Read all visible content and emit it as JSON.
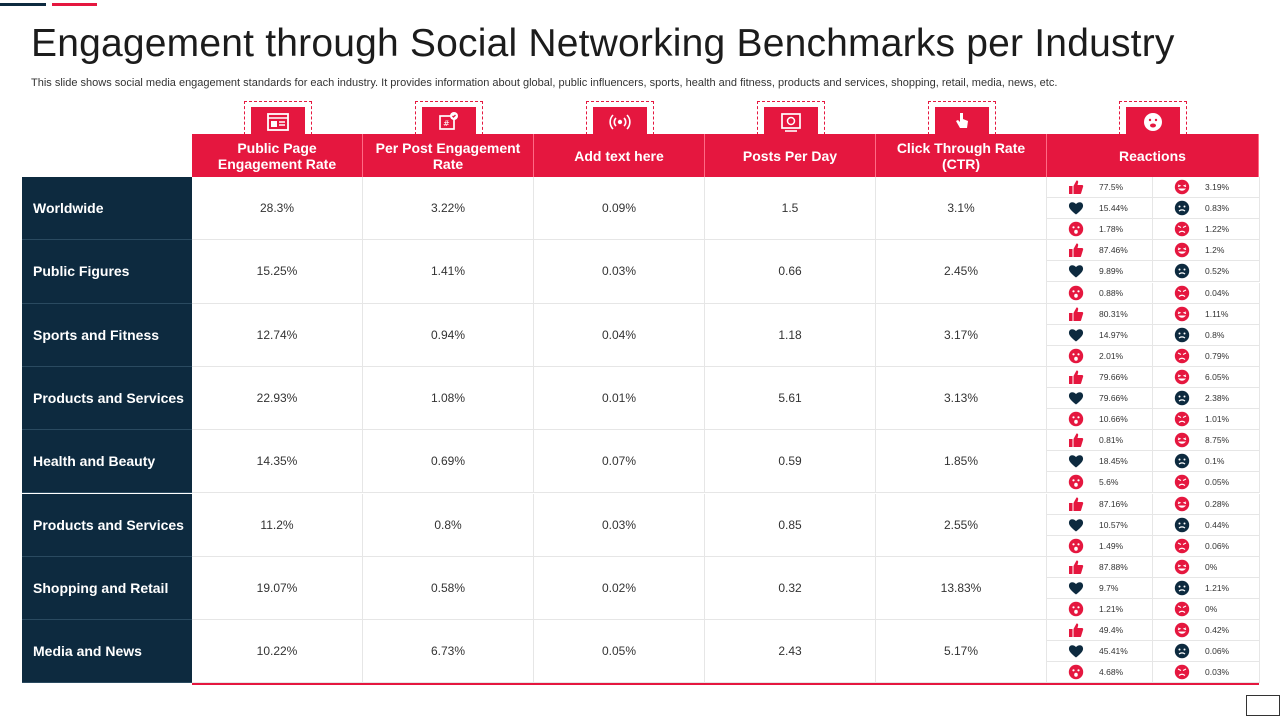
{
  "title": "Engagement through Social Networking Benchmarks per Industry",
  "subtitle": "This slide shows social media engagement standards for each industry. It provides information about global, public influencers, sports, health and fitness, products and services, shopping, retail, media, news, etc.",
  "colors": {
    "accent": "#e5173f",
    "dark": "#0d2a3f"
  },
  "columns": [
    {
      "label": "Public Page Engagement Rate",
      "icon": "webpage-icon"
    },
    {
      "label": "Per Post Engagement Rate",
      "icon": "hashtag-post-icon"
    },
    {
      "label": "Add text here",
      "icon": "broadcast-icon"
    },
    {
      "label": "Posts Per Day",
      "icon": "image-post-icon"
    },
    {
      "label": "Click Through Rate (CTR)",
      "icon": "click-icon"
    },
    {
      "label": "Reactions",
      "icon": "surprised-face-icon"
    }
  ],
  "rows": [
    {
      "label": "Worldwide",
      "values": [
        "28.3%",
        "3.22%",
        "0.09%",
        "1.5",
        "3.1%"
      ],
      "reactions": {
        "like": "77.5%",
        "love": "15.44%",
        "wow": "1.78%",
        "haha": "3.19%",
        "sad": "0.83%",
        "angry": "1.22%"
      }
    },
    {
      "label": "Public Figures",
      "values": [
        "15.25%",
        "1.41%",
        "0.03%",
        "0.66",
        "2.45%"
      ],
      "reactions": {
        "like": "87.46%",
        "love": "9.89%",
        "wow": "0.88%",
        "haha": "1.2%",
        "sad": "0.52%",
        "angry": "0.04%"
      }
    },
    {
      "label": "Sports and Fitness",
      "values": [
        "12.74%",
        "0.94%",
        "0.04%",
        "1.18",
        "3.17%"
      ],
      "reactions": {
        "like": "80.31%",
        "love": "14.97%",
        "wow": "2.01%",
        "haha": "1.11%",
        "sad": "0.8%",
        "angry": "0.79%"
      }
    },
    {
      "label": "Products and Services",
      "values": [
        "22.93%",
        "1.08%",
        "0.01%",
        "5.61",
        "3.13%"
      ],
      "reactions": {
        "like": "79.66%",
        "love": "79.66%",
        "wow": "10.66%",
        "haha": "6.05%",
        "sad": "2.38%",
        "angry": "1.01%"
      }
    },
    {
      "label": "Health and Beauty",
      "values": [
        "14.35%",
        "0.69%",
        "0.07%",
        "0.59",
        "1.85%"
      ],
      "reactions": {
        "like": "0.81%",
        "love": "18.45%",
        "wow": "5.6%",
        "haha": "8.75%",
        "sad": "0.1%",
        "angry": "0.05%"
      }
    },
    {
      "label": "Products and Services",
      "values": [
        "11.2%",
        "0.8%",
        "0.03%",
        "0.85",
        "2.55%"
      ],
      "reactions": {
        "like": "87.16%",
        "love": "10.57%",
        "wow": "1.49%",
        "haha": "0.28%",
        "sad": "0.44%",
        "angry": "0.06%"
      }
    },
    {
      "label": "Shopping and Retail",
      "values": [
        "19.07%",
        "0.58%",
        "0.02%",
        "0.32",
        "13.83%"
      ],
      "reactions": {
        "like": "87.88%",
        "love": "9.7%",
        "wow": "1.21%",
        "haha": "0%",
        "sad": "1.21%",
        "angry": "0%"
      }
    },
    {
      "label": "Media and News",
      "values": [
        "10.22%",
        "6.73%",
        "0.05%",
        "2.43",
        "5.17%"
      ],
      "reactions": {
        "like": "49.4%",
        "love": "45.41%",
        "wow": "4.68%",
        "haha": "0.42%",
        "sad": "0.06%",
        "angry": "0.03%"
      }
    }
  ]
}
